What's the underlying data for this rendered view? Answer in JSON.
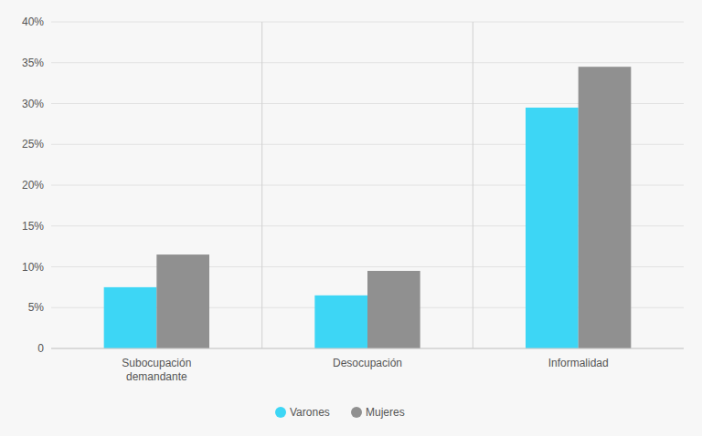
{
  "chart_data": {
    "type": "bar",
    "categories": [
      "Subocupación\ndemandante",
      "Desocupación",
      "Informalidad"
    ],
    "series": [
      {
        "name": "Varones",
        "color": "#3DD6F5",
        "values": [
          7.5,
          6.5,
          29.5
        ]
      },
      {
        "name": "Mujeres",
        "color": "#909090",
        "values": [
          11.5,
          9.5,
          34.5
        ]
      }
    ],
    "ylim": [
      0,
      40
    ],
    "yticks": [
      0,
      {
        "value": 5,
        "label": "5%"
      },
      {
        "value": 10,
        "label": "10%"
      },
      {
        "value": 15,
        "label": "15%"
      },
      {
        "value": 20,
        "label": "20%"
      },
      {
        "value": 25,
        "label": "25%"
      },
      {
        "value": 30,
        "label": "30%"
      },
      {
        "value": 35,
        "label": "35%"
      },
      {
        "value": 40,
        "label": "40%"
      }
    ],
    "grid": true,
    "legend": "bottom"
  }
}
